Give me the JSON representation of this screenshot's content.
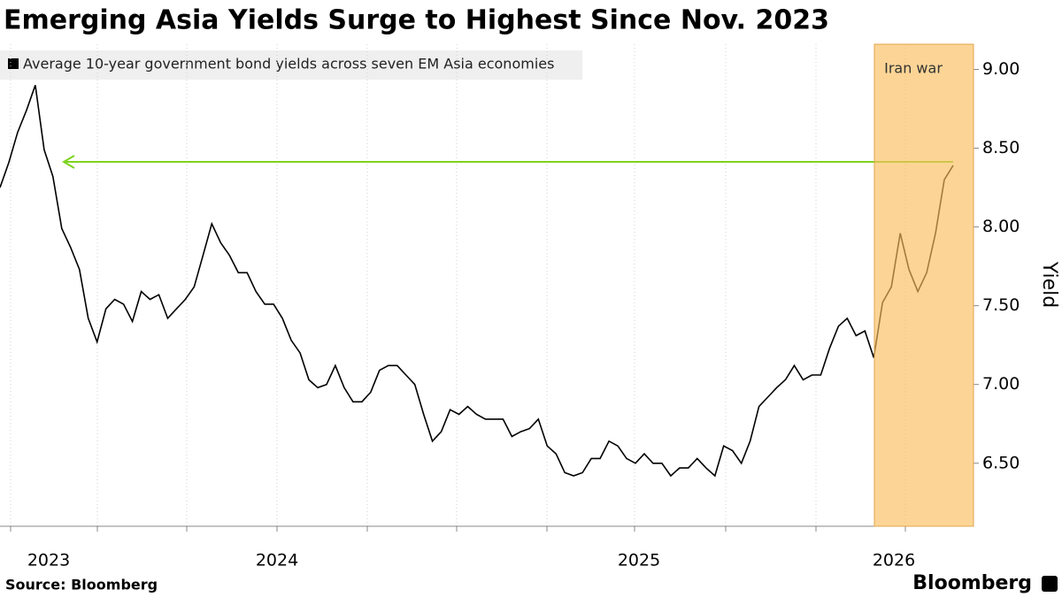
{
  "chart_data": {
    "type": "line",
    "title": "Emerging Asia Yields Surge to Highest Since Nov. 2023",
    "series": [
      {
        "name": "Average 10-year government bond yields across seven EM Asia economies",
        "color": "#000000",
        "values": [
          8.25,
          8.41,
          8.6,
          8.74,
          8.9,
          8.49,
          8.32,
          7.99,
          7.87,
          7.73,
          7.42,
          7.27,
          7.48,
          7.54,
          7.51,
          7.4,
          7.59,
          7.54,
          7.57,
          7.42,
          7.48,
          7.54,
          7.62,
          7.82,
          8.02,
          7.9,
          7.82,
          7.71,
          7.71,
          7.59,
          7.51,
          7.51,
          7.42,
          7.28,
          7.2,
          7.03,
          6.98,
          7.0,
          7.12,
          6.98,
          6.89,
          6.89,
          6.95,
          7.09,
          7.12,
          7.12,
          7.06,
          7.0,
          6.81,
          6.64,
          6.7,
          6.84,
          6.81,
          6.86,
          6.81,
          6.78,
          6.78,
          6.78,
          6.67,
          6.7,
          6.72,
          6.78,
          6.61,
          6.56,
          6.44,
          6.42,
          6.44,
          6.53,
          6.53,
          6.64,
          6.61,
          6.53,
          6.5,
          6.56,
          6.5,
          6.5,
          6.42,
          6.47,
          6.47,
          6.53,
          6.47,
          6.42,
          6.61,
          6.58,
          6.5,
          6.64,
          6.86,
          6.92,
          6.98,
          7.03,
          7.12,
          7.03,
          7.06,
          7.06,
          7.23,
          7.37,
          7.42,
          7.31,
          7.34,
          7.17,
          7.52,
          7.62,
          7.96,
          7.73,
          7.59,
          7.71,
          7.96,
          8.3,
          8.39
        ]
      }
    ],
    "x_labels": [
      "2023",
      "2024",
      "2025",
      "2026"
    ],
    "ylim": [
      6.1,
      9.16
    ],
    "yticks": [
      {
        "value": 6.5,
        "label": "6.50"
      },
      {
        "value": 7,
        "label": "7.00"
      },
      {
        "value": 7.5,
        "label": "7.50"
      },
      {
        "value": 8,
        "label": "8.00"
      },
      {
        "value": 8.5,
        "label": "8.50"
      },
      {
        "value": 9,
        "label": "9.00"
      }
    ],
    "y_label": "Yield",
    "annotation": "Iran war",
    "source": "Source: Bloomberg",
    "brand": "Bloomberg"
  }
}
